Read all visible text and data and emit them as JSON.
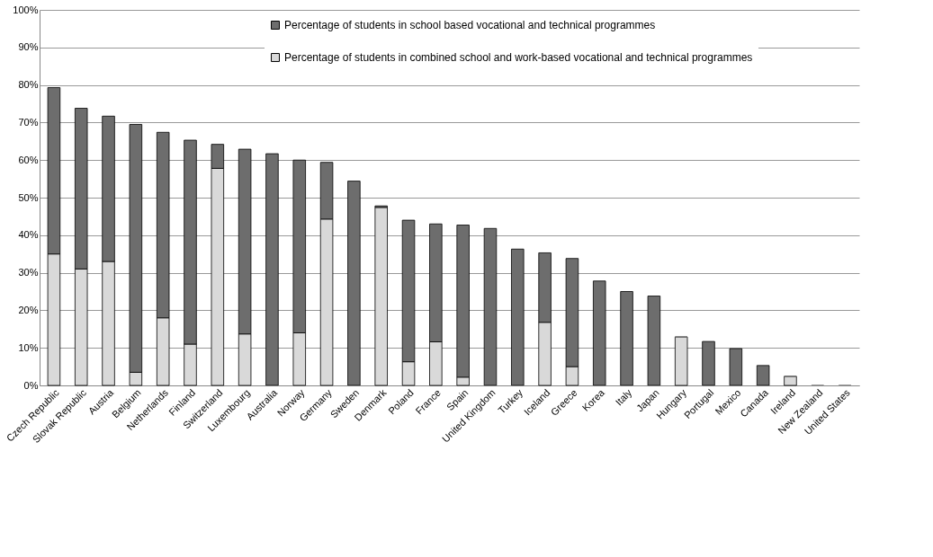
{
  "chart_data": {
    "type": "bar",
    "stacked": true,
    "categories": [
      "Czech Republic",
      "Slovak Republic",
      "Austria",
      "Belgium",
      "Netherlands",
      "Finland",
      "Switzerland",
      "Luxembourg",
      "Australia",
      "Norway",
      "Germany",
      "Sweden",
      "Denmark",
      "Poland",
      "France",
      "Spain",
      "United Kingdom",
      "Turkey",
      "Iceland",
      "Greece",
      "Korea",
      "Italy",
      "Japan",
      "Hungary",
      "Portugal",
      "Mexico",
      "Canada",
      "Ireland",
      "New Zealand",
      "United States"
    ],
    "series": [
      {
        "name": "Percentage of students in combined school and work-based vocational and technical programmes",
        "color": "#d9d9d9",
        "values": [
          35,
          31,
          33,
          3.5,
          18,
          11,
          57.8,
          13.7,
          0,
          14,
          44.3,
          0,
          47.4,
          6.3,
          11.6,
          2.2,
          0,
          0,
          16.8,
          5,
          0,
          0,
          0,
          12.9,
          0,
          0,
          0,
          2.4,
          0,
          0
        ]
      },
      {
        "name": "Percentage of students in school based vocational and technical programmes",
        "color": "#6d6d6d",
        "values": [
          44.3,
          42.8,
          38.7,
          66,
          49.4,
          54.3,
          6.4,
          49.2,
          61.7,
          46,
          15.1,
          54.4,
          0.4,
          37.7,
          31.4,
          40.5,
          41.8,
          36.3,
          18.5,
          28.8,
          27.8,
          25,
          23.8,
          0,
          11.7,
          9.8,
          5.3,
          0,
          0,
          0
        ]
      }
    ],
    "ylim": [
      0,
      100
    ],
    "yticks": [
      {
        "value": 0,
        "label": "0%"
      },
      {
        "value": 10,
        "label": "10%"
      },
      {
        "value": 20,
        "label": "20%"
      },
      {
        "value": 30,
        "label": "30%"
      },
      {
        "value": 40,
        "label": "40%"
      },
      {
        "value": 50,
        "label": "50%"
      },
      {
        "value": 60,
        "label": "60%"
      },
      {
        "value": 70,
        "label": "70%"
      },
      {
        "value": 80,
        "label": "80%"
      },
      {
        "value": 90,
        "label": "90%"
      },
      {
        "value": 100,
        "label": "100%"
      }
    ],
    "grid": "y",
    "legend": "top"
  }
}
